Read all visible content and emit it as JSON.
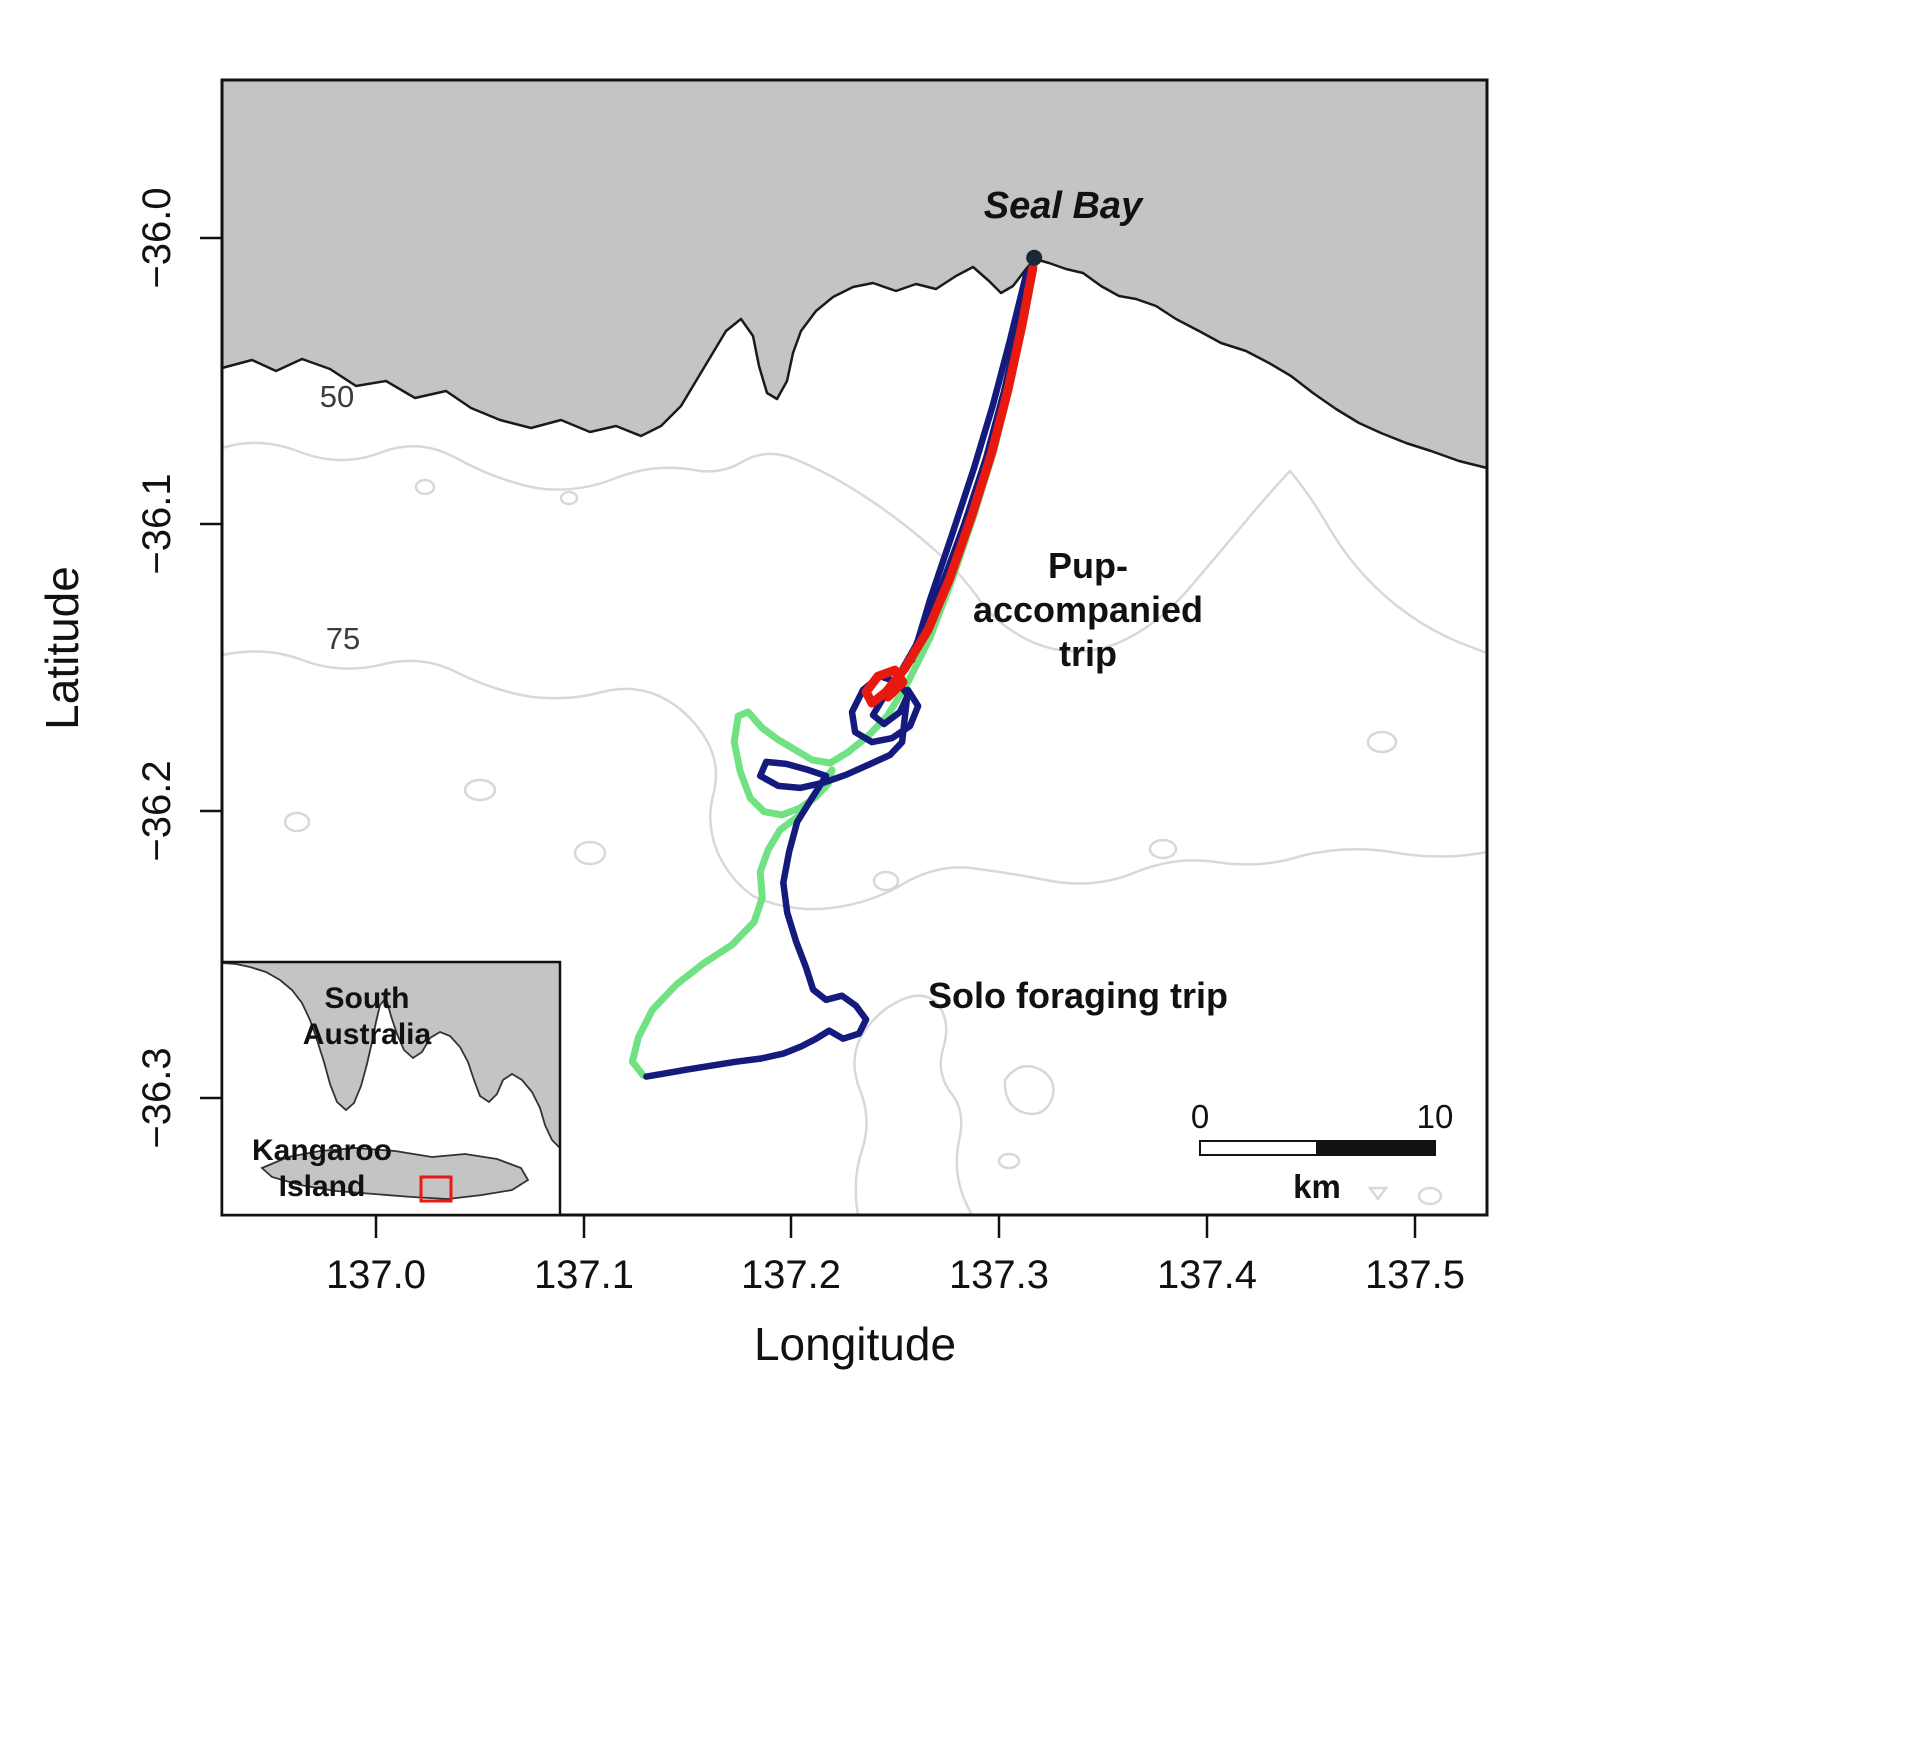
{
  "figure": {
    "x_axis": {
      "title": "Longitude",
      "tick_labels": [
        "137.0",
        "137.1",
        "137.2",
        "137.3",
        "137.4",
        "137.5"
      ]
    },
    "y_axis": {
      "title": "Latitude",
      "tick_labels": [
        "−36.0",
        "−36.1",
        "−36.2",
        "−36.3"
      ]
    }
  },
  "annotations": {
    "colony": {
      "label": "Seal Bay"
    },
    "pup_trip": {
      "lines": [
        "Pup-",
        "accompanied",
        "trip"
      ],
      "color": "#e8190f"
    },
    "solo_trip": {
      "label": "Solo foraging trip",
      "color": "#141b7d"
    },
    "depth_contours": {
      "labels": [
        "50",
        "75"
      ]
    }
  },
  "inset": {
    "region_lines": [
      "South",
      "Australia"
    ],
    "island_lines": [
      "Kangaroo",
      "Island"
    ],
    "study_area_color": "#e8190f"
  },
  "scale_bar": {
    "start": "0",
    "end": "10",
    "unit": "km"
  },
  "chart_data": {
    "type": "line",
    "title": "",
    "xlabel": "Longitude",
    "ylabel": "Latitude",
    "xlim": [
      136.926,
      137.535
    ],
    "ylim": [
      -36.341,
      -35.945
    ],
    "x_ticks": [
      137.0,
      137.1,
      137.2,
      137.3,
      137.4,
      137.5
    ],
    "y_ticks": [
      -36.0,
      -36.1,
      -36.2,
      -36.3
    ],
    "grid": false,
    "depth_contour_labels_m": [
      50,
      75
    ],
    "scale_bar_km": 10,
    "colony": {
      "name": "Seal Bay",
      "lon": 137.317,
      "lat": -36.007,
      "color": "#1b2836"
    },
    "series": [
      {
        "id": "green_trip",
        "name": "",
        "color": "#70e283",
        "stroke_width": 7,
        "segments": [
          [
            [
              137.3173,
              -36.0087
            ],
            [
              137.312,
              -36.0282
            ],
            [
              137.3053,
              -36.0516
            ],
            [
              137.2976,
              -36.0742
            ],
            [
              137.288,
              -36.0969
            ],
            [
              137.2774,
              -36.1195
            ],
            [
              137.2668,
              -36.1397
            ],
            [
              137.2562,
              -36.1551
            ],
            [
              137.2466,
              -36.1666
            ],
            [
              137.237,
              -36.1739
            ],
            [
              137.2274,
              -36.1795
            ],
            [
              137.2188,
              -36.1833
            ],
            [
              137.2101,
              -36.1822
            ],
            [
              137.2019,
              -36.1787
            ],
            [
              137.1938,
              -36.1752
            ],
            [
              137.1861,
              -36.1711
            ],
            [
              137.1793,
              -36.1655
            ],
            [
              137.1745,
              -36.1669
            ],
            [
              137.1726,
              -36.176
            ],
            [
              137.1755,
              -36.1864
            ],
            [
              137.1803,
              -36.1955
            ],
            [
              137.187,
              -36.2003
            ],
            [
              137.1957,
              -36.2014
            ],
            [
              137.2043,
              -36.199
            ],
            [
              137.212,
              -36.1951
            ],
            [
              137.2178,
              -36.1906
            ],
            [
              137.2197,
              -36.1857
            ],
            [
              137.2043,
              -36.2014
            ],
            [
              137.1947,
              -36.2066
            ],
            [
              137.1889,
              -36.2136
            ],
            [
              137.1851,
              -36.2213
            ],
            [
              137.1861,
              -36.2303
            ],
            [
              137.1822,
              -36.2387
            ],
            [
              137.1716,
              -36.2467
            ],
            [
              137.1582,
              -36.253
            ],
            [
              137.1447,
              -36.2606
            ],
            [
              137.1332,
              -36.2694
            ],
            [
              137.1264,
              -36.2791
            ],
            [
              137.1236,
              -36.2875
            ],
            [
              137.1288,
              -36.2923
            ]
          ]
        ]
      },
      {
        "id": "solo_foraging_trip",
        "name": "Solo foraging trip",
        "color": "#141b7d",
        "stroke_width": 6.5,
        "segments": [
          [
            [
              137.3173,
              -36.0073
            ],
            [
              137.3101,
              -36.0296
            ],
            [
              137.3024,
              -36.054
            ],
            [
              137.2938,
              -36.077
            ],
            [
              137.2832,
              -36.1003
            ],
            [
              137.2716,
              -36.123
            ],
            [
              137.2601,
              -36.1422
            ],
            [
              137.251,
              -36.1537
            ],
            [
              137.2438,
              -36.1613
            ],
            [
              137.2394,
              -36.1666
            ],
            [
              137.2447,
              -36.1697
            ],
            [
              137.2524,
              -36.1655
            ],
            [
              137.2562,
              -36.1596
            ],
            [
              137.2514,
              -36.1551
            ],
            [
              137.2428,
              -36.153
            ],
            [
              137.2346,
              -36.1578
            ],
            [
              137.2293,
              -36.1655
            ],
            [
              137.2308,
              -36.1725
            ],
            [
              137.2389,
              -36.176
            ],
            [
              137.2486,
              -36.1746
            ],
            [
              137.2572,
              -36.1704
            ],
            [
              137.2611,
              -36.1634
            ],
            [
              137.2562,
              -36.1578
            ],
            [
              137.2534,
              -36.176
            ],
            [
              137.2476,
              -36.1805
            ],
            [
              137.237,
              -36.184
            ],
            [
              137.2264,
              -36.1874
            ],
            [
              137.2154,
              -36.1902
            ],
            [
              137.2043,
              -36.192
            ],
            [
              137.1938,
              -36.1913
            ],
            [
              137.1851,
              -36.1878
            ],
            [
              137.188,
              -36.1829
            ],
            [
              137.1976,
              -36.1836
            ],
            [
              137.2082,
              -36.1857
            ],
            [
              137.2168,
              -36.1878
            ],
            [
              137.2101,
              -36.1955
            ],
            [
              137.2029,
              -36.2038
            ],
            [
              137.199,
              -36.2143
            ],
            [
              137.1962,
              -36.2251
            ],
            [
              137.1981,
              -36.2355
            ],
            [
              137.2024,
              -36.2456
            ],
            [
              137.2072,
              -36.2547
            ],
            [
              137.2106,
              -36.2624
            ],
            [
              137.2168,
              -36.2659
            ],
            [
              137.2245,
              -36.2645
            ],
            [
              137.2312,
              -36.268
            ],
            [
              137.2361,
              -36.2728
            ],
            [
              137.2327,
              -36.2777
            ],
            [
              137.225,
              -36.2795
            ],
            [
              137.2183,
              -36.2767
            ],
            [
              137.212,
              -36.2795
            ],
            [
              137.2048,
              -36.2822
            ],
            [
              137.1962,
              -36.2847
            ],
            [
              137.1856,
              -36.2864
            ],
            [
              137.1736,
              -36.2875
            ],
            [
              137.1615,
              -36.2889
            ],
            [
              137.1495,
              -36.2903
            ],
            [
              137.1385,
              -36.2917
            ],
            [
              137.1303,
              -36.2927
            ]
          ],
          [
            [
              137.2582,
              -36.1474
            ],
            [
              137.2668,
              -36.1265
            ],
            [
              137.2774,
              -36.1038
            ],
            [
              137.288,
              -36.0805
            ],
            [
              137.2971,
              -36.0585
            ],
            [
              137.3053,
              -36.0359
            ],
            [
              137.313,
              -36.0132
            ],
            [
              137.3178,
              -36.008
            ]
          ]
        ]
      },
      {
        "id": "pup_accompanied_trip",
        "name": "Pup-accompanied trip",
        "color": "#e8190f",
        "stroke_width": 9,
        "segments": [
          [
            [
              137.3163,
              -36.0108
            ],
            [
              137.3111,
              -36.0307
            ],
            [
              137.3043,
              -36.0533
            ],
            [
              137.2966,
              -36.0749
            ],
            [
              137.287,
              -36.0969
            ],
            [
              137.2764,
              -36.1188
            ],
            [
              137.2659,
              -36.1369
            ],
            [
              137.2548,
              -36.1502
            ],
            [
              137.2457,
              -36.1585
            ],
            [
              137.2389,
              -36.1624
            ],
            [
              137.2361,
              -36.1585
            ],
            [
              137.2418,
              -36.153
            ],
            [
              137.25,
              -36.1509
            ],
            [
              137.2538,
              -36.1551
            ],
            [
              137.2466,
              -36.1603
            ]
          ]
        ]
      }
    ]
  }
}
